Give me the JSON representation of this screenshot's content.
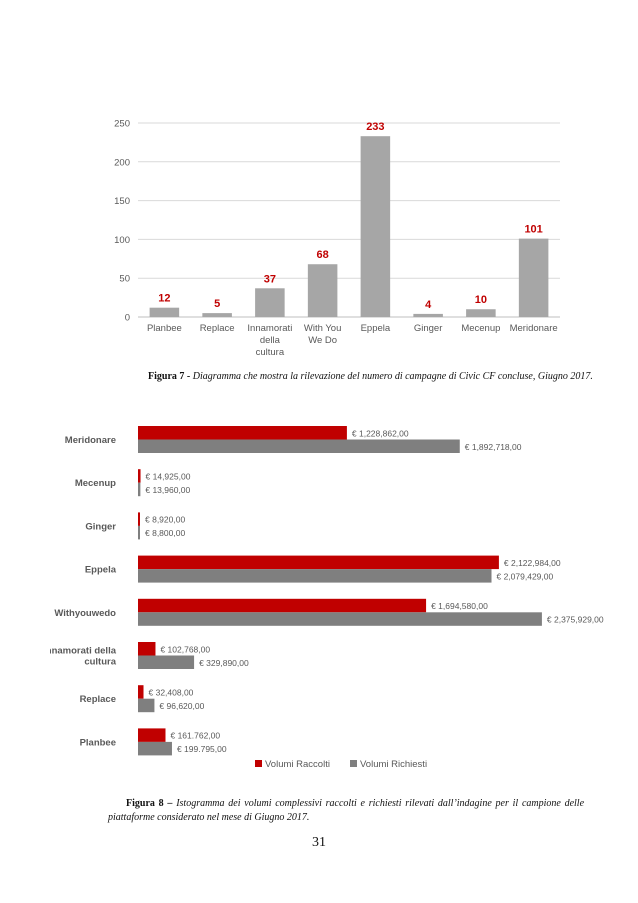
{
  "chart_data": [
    {
      "type": "bar",
      "title": "",
      "categories": [
        "Planbee",
        "Replace",
        "Innamorati\ndella\ncultura",
        "With You\nWe Do",
        "Eppela",
        "Ginger",
        "Mecenup",
        "Meridonare"
      ],
      "values": [
        12,
        5,
        37,
        68,
        233,
        4,
        10,
        101
      ],
      "data_labels": [
        "12",
        "5",
        "37",
        "68",
        "233",
        "4",
        "10",
        "101"
      ],
      "yticks": [
        "0",
        "50",
        "100",
        "150",
        "200",
        "250"
      ],
      "ylim": [
        0,
        250
      ],
      "grid": true,
      "xlabel": "",
      "ylabel": "",
      "bar_color": "#a6a6a6",
      "label_color": "#c00000"
    },
    {
      "type": "bar",
      "orientation": "horizontal",
      "title": "",
      "categories": [
        "Meridonare",
        "Mecenup",
        "Ginger",
        "Eppela",
        "Withyouwedo",
        "Innamorati della\ncultura",
        "Replace",
        "Planbee"
      ],
      "series": [
        {
          "name": "Volumi Raccolti",
          "color": "#c00000",
          "values": [
            1228862,
            14925,
            8920,
            2122984,
            1694580,
            102768,
            32408,
            161762
          ],
          "labels": [
            "€ 1,228,862,00",
            "€ 14,925,00",
            "€ 8,920,00",
            "€ 2,122,984,00",
            "€ 1,694,580,00",
            "€ 102,768,00",
            "€ 32,408,00",
            "€ 161.762,00"
          ]
        },
        {
          "name": "Volumi Richiesti",
          "color": "#7f7f7f",
          "values": [
            1892718,
            13960,
            8800,
            2079429,
            2375929,
            329890,
            96620,
            199795
          ],
          "labels": [
            "€ 1,892,718,00",
            "€ 13,960,00",
            "€ 8,800,00",
            "€ 2,079,429,00",
            "€ 2,375,929,00",
            "€ 329,890,00",
            "€ 96,620,00",
            "€ 199.795,00"
          ]
        }
      ],
      "legend": "bottom",
      "xlabel": "",
      "ylabel": ""
    }
  ],
  "captions": {
    "fig7_label": "Figura 7 -",
    "fig7_text": "Diagramma che mostra la rilevazione del numero di campagne di Civic CF concluse, Giugno 2017.",
    "fig8_label": "Figura 8 –",
    "fig8_line1": "Istogramma dei volumi complessivi raccolti e richiesti rilevati dall’indagine per il campione delle",
    "fig8_line2": "piattaforme considerato nel mese di Giugno 2017."
  },
  "page_number": "31"
}
